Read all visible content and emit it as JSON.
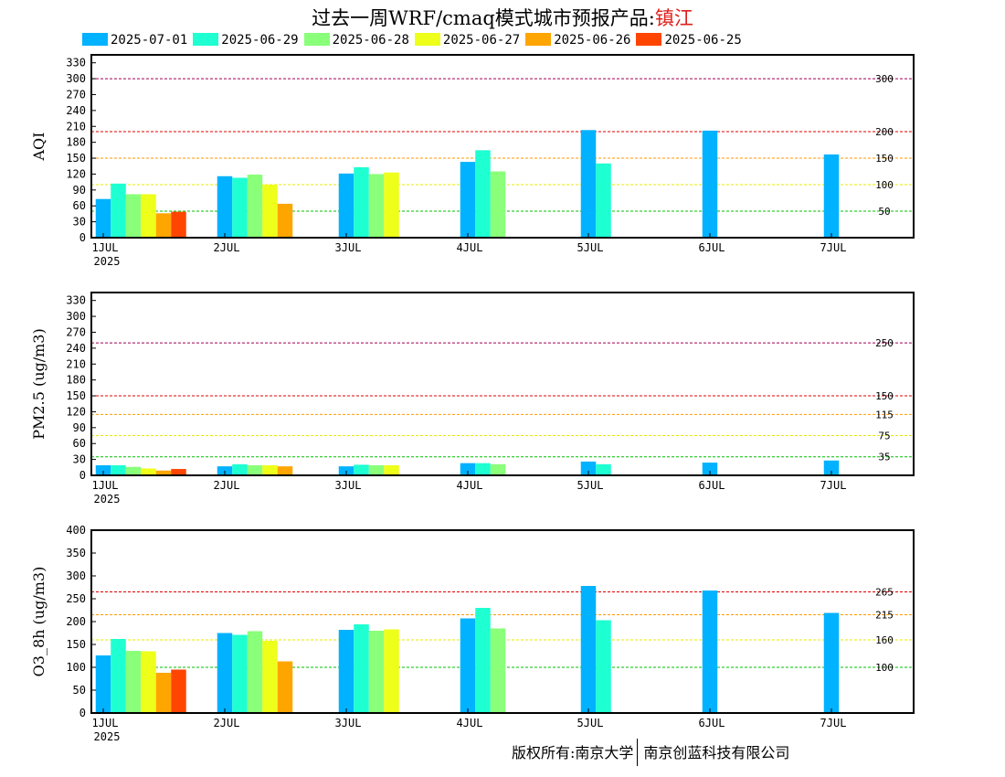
{
  "title": {
    "main": "过去一周WRF/cmaq模式城市预报产品:",
    "city": "镇江"
  },
  "legend": [
    {
      "label": "2025-07-01",
      "color": "#00b2ff"
    },
    {
      "label": "2025-06-29",
      "color": "#1effd2"
    },
    {
      "label": "2025-06-28",
      "color": "#8aff7a"
    },
    {
      "label": "2025-06-27",
      "color": "#eeff1a"
    },
    {
      "label": "2025-06-26",
      "color": "#ffa500"
    },
    {
      "label": "2025-06-25",
      "color": "#ff4500"
    }
  ],
  "x_ticks": [
    "1JUL",
    "2JUL",
    "3JUL",
    "4JUL",
    "5JUL",
    "6JUL",
    "7JUL"
  ],
  "x_year": "2025",
  "chart_data": [
    {
      "type": "bar",
      "ylabel": "AQI",
      "ylim": [
        0,
        345
      ],
      "yticks": [
        0,
        30,
        60,
        90,
        120,
        150,
        180,
        210,
        240,
        270,
        300,
        330
      ],
      "thresholds": [
        {
          "value": 50,
          "label": "50",
          "color": "#00c000"
        },
        {
          "value": 100,
          "label": "100",
          "color": "#e8e800"
        },
        {
          "value": 150,
          "label": "150",
          "color": "#ff9900"
        },
        {
          "value": 200,
          "label": "200",
          "color": "#e00000"
        },
        {
          "value": 300,
          "label": "300",
          "color": "#a00050"
        }
      ],
      "series": [
        {
          "name": "2025-07-01",
          "values": [
            73,
            116,
            121,
            143,
            203,
            202,
            157
          ]
        },
        {
          "name": "2025-06-29",
          "values": [
            102,
            113,
            133,
            165,
            140,
            null,
            null
          ]
        },
        {
          "name": "2025-06-28",
          "values": [
            82,
            119,
            120,
            125,
            null,
            null,
            null
          ]
        },
        {
          "name": "2025-06-27",
          "values": [
            82,
            100,
            123,
            null,
            null,
            null,
            null
          ]
        },
        {
          "name": "2025-06-26",
          "values": [
            46,
            64,
            null,
            null,
            null,
            null,
            null
          ]
        },
        {
          "name": "2025-06-25",
          "values": [
            49,
            null,
            null,
            null,
            null,
            null,
            null
          ]
        }
      ]
    },
    {
      "type": "bar",
      "ylabel": "PM2.5 (ug/m3)",
      "ylim": [
        0,
        345
      ],
      "yticks": [
        0,
        30,
        60,
        90,
        120,
        150,
        180,
        210,
        240,
        270,
        300,
        330
      ],
      "thresholds": [
        {
          "value": 35,
          "label": "35",
          "color": "#00c000"
        },
        {
          "value": 75,
          "label": "75",
          "color": "#e8e800"
        },
        {
          "value": 115,
          "label": "115",
          "color": "#ff9900"
        },
        {
          "value": 150,
          "label": "150",
          "color": "#e00000"
        },
        {
          "value": 250,
          "label": "250",
          "color": "#a00050"
        }
      ],
      "series": [
        {
          "name": "2025-07-01",
          "values": [
            19,
            17,
            17,
            23,
            26,
            24,
            28
          ]
        },
        {
          "name": "2025-06-29",
          "values": [
            19,
            21,
            20,
            23,
            21,
            null,
            null
          ]
        },
        {
          "name": "2025-06-28",
          "values": [
            16,
            19,
            19,
            21,
            null,
            null,
            null
          ]
        },
        {
          "name": "2025-06-27",
          "values": [
            13,
            19,
            19,
            null,
            null,
            null,
            null
          ]
        },
        {
          "name": "2025-06-26",
          "values": [
            9,
            17,
            null,
            null,
            null,
            null,
            null
          ]
        },
        {
          "name": "2025-06-25",
          "values": [
            12,
            null,
            null,
            null,
            null,
            null,
            null
          ]
        }
      ]
    },
    {
      "type": "bar",
      "ylabel": "O3_8h (ug/m3)",
      "ylim": [
        0,
        400
      ],
      "yticks": [
        0,
        50,
        100,
        150,
        200,
        250,
        300,
        350,
        400
      ],
      "thresholds": [
        {
          "value": 100,
          "label": "100",
          "color": "#00c000"
        },
        {
          "value": 160,
          "label": "160",
          "color": "#e8e800"
        },
        {
          "value": 215,
          "label": "215",
          "color": "#ff9900"
        },
        {
          "value": 265,
          "label": "265",
          "color": "#e00000"
        }
      ],
      "series": [
        {
          "name": "2025-07-01",
          "values": [
            126,
            175,
            182,
            207,
            278,
            268,
            219
          ]
        },
        {
          "name": "2025-06-29",
          "values": [
            162,
            171,
            194,
            230,
            203,
            null,
            null
          ]
        },
        {
          "name": "2025-06-28",
          "values": [
            136,
            179,
            180,
            185,
            null,
            null,
            null
          ]
        },
        {
          "name": "2025-06-27",
          "values": [
            135,
            158,
            183,
            null,
            null,
            null,
            null
          ]
        },
        {
          "name": "2025-06-26",
          "values": [
            88,
            113,
            null,
            null,
            null,
            null,
            null
          ]
        },
        {
          "name": "2025-06-25",
          "values": [
            95,
            null,
            null,
            null,
            null,
            null,
            null
          ]
        }
      ]
    }
  ],
  "footer": {
    "left": "版权所有:南京大学",
    "right": "南京创蓝科技有限公司"
  }
}
